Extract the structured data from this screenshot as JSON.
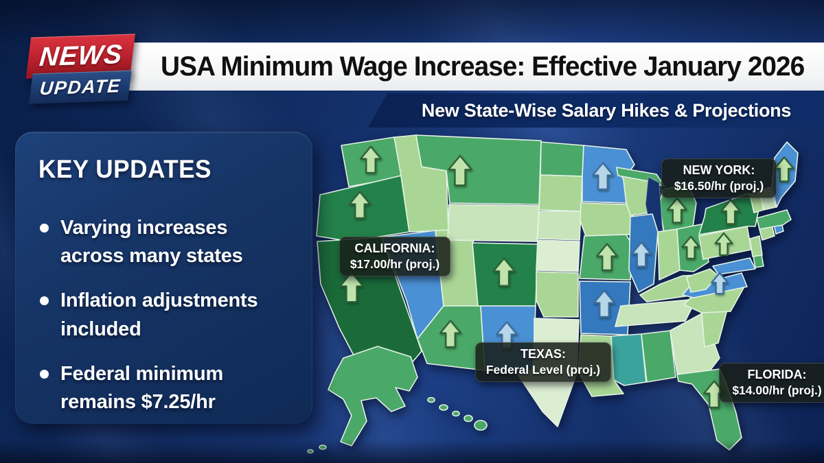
{
  "badge": {
    "line1": "NEWS",
    "line2": "UPDATE"
  },
  "header": {
    "title": "USA Minimum Wage Increase: Effective January 2026"
  },
  "subheader": {
    "text": "New State-Wise Salary Hikes & Projections"
  },
  "key_updates": {
    "title": "KEY UPDATES",
    "bullets": [
      "Varying increases across many states",
      "Inflation adjustments included",
      "Federal minimum remains $7.25/hr"
    ]
  },
  "colors": {
    "badge_red": "#c02330",
    "badge_navy": "#1c3a6f",
    "banner_white": "#ffffff",
    "background_navy": "#16336f",
    "headline_text": "#101010",
    "panel_navy": "#153364"
  },
  "map": {
    "palette": {
      "green_darkest": "#1b6b3a",
      "green_dark": "#23824a",
      "green_med": "#4aa868",
      "green_light": "#a9d695",
      "green_pale": "#c8e4bb",
      "green_palest": "#dbeed2",
      "blue": "#4a90d4",
      "blue_dark": "#3478be",
      "teal": "#3aa39b",
      "water": "#16356f",
      "state_border": "#e6f2e6",
      "arrow_green_fill": "#bfe3ab",
      "arrow_green_stroke": "#2f6137",
      "arrow_blue_fill": "#b7d7e8",
      "arrow_blue_stroke": "#3f6f9e"
    },
    "arrow_icon": "up-arrow-icon",
    "states": [
      {
        "id": "wa",
        "name": "Washington",
        "fill": "green_med",
        "arrow": true
      },
      {
        "id": "or",
        "name": "Oregon",
        "fill": "green_dark",
        "arrow": true
      },
      {
        "id": "ca",
        "name": "California",
        "fill": "green_darkest",
        "arrow": true
      },
      {
        "id": "id",
        "name": "Idaho",
        "fill": "green_light",
        "arrow": false
      },
      {
        "id": "nv",
        "name": "Nevada",
        "fill": "blue",
        "arrow": false
      },
      {
        "id": "ut",
        "name": "Utah",
        "fill": "green_light",
        "arrow": false
      },
      {
        "id": "az",
        "name": "Arizona",
        "fill": "green_med",
        "arrow": true
      },
      {
        "id": "mt",
        "name": "Montana",
        "fill": "green_med",
        "arrow": true
      },
      {
        "id": "wy",
        "name": "Wyoming",
        "fill": "green_pale",
        "arrow": false
      },
      {
        "id": "co",
        "name": "Colorado",
        "fill": "green_dark",
        "arrow": true
      },
      {
        "id": "nm",
        "name": "New Mexico",
        "fill": "blue",
        "arrow": true
      },
      {
        "id": "nd",
        "name": "North Dakota",
        "fill": "green_med",
        "arrow": false
      },
      {
        "id": "sd",
        "name": "South Dakota",
        "fill": "green_light",
        "arrow": false
      },
      {
        "id": "ne",
        "name": "Nebraska",
        "fill": "green_pale",
        "arrow": false
      },
      {
        "id": "ks",
        "name": "Kansas",
        "fill": "green_palest",
        "arrow": false
      },
      {
        "id": "ok",
        "name": "Oklahoma",
        "fill": "green_light",
        "arrow": false
      },
      {
        "id": "tx",
        "name": "Texas",
        "fill": "green_palest",
        "arrow": false
      },
      {
        "id": "mn",
        "name": "Minnesota",
        "fill": "blue",
        "arrow": true
      },
      {
        "id": "ia",
        "name": "Iowa",
        "fill": "green_light",
        "arrow": false
      },
      {
        "id": "mo",
        "name": "Missouri",
        "fill": "green_med",
        "arrow": true
      },
      {
        "id": "ar",
        "name": "Arkansas",
        "fill": "blue_dark",
        "arrow": true
      },
      {
        "id": "la",
        "name": "Louisiana",
        "fill": "green_light",
        "arrow": false
      },
      {
        "id": "wi",
        "name": "Wisconsin",
        "fill": "green_light",
        "arrow": false
      },
      {
        "id": "mi_up",
        "name": "Michigan Upper Peninsula",
        "fill": "green_med",
        "arrow": false
      },
      {
        "id": "mi",
        "name": "Michigan",
        "fill": "green_med",
        "arrow": true
      },
      {
        "id": "lake_mi",
        "name": "Lake Michigan",
        "fill": "water",
        "arrow": false
      },
      {
        "id": "il",
        "name": "Illinois",
        "fill": "blue_dark",
        "arrow": true
      },
      {
        "id": "in",
        "name": "Indiana",
        "fill": "green_light",
        "arrow": false
      },
      {
        "id": "oh",
        "name": "Ohio",
        "fill": "green_med",
        "arrow": true
      },
      {
        "id": "ky",
        "name": "Kentucky",
        "fill": "green_light",
        "arrow": false
      },
      {
        "id": "tn",
        "name": "Tennessee",
        "fill": "green_pale",
        "arrow": false
      },
      {
        "id": "ms",
        "name": "Mississippi",
        "fill": "teal",
        "arrow": false
      },
      {
        "id": "al",
        "name": "Alabama",
        "fill": "green_med",
        "arrow": false
      },
      {
        "id": "ga",
        "name": "Georgia",
        "fill": "green_pale",
        "arrow": false
      },
      {
        "id": "sc",
        "name": "South Carolina",
        "fill": "green_light",
        "arrow": false
      },
      {
        "id": "nc",
        "name": "North Carolina",
        "fill": "green_light",
        "arrow": false
      },
      {
        "id": "va",
        "name": "Virginia",
        "fill": "blue",
        "arrow": true
      },
      {
        "id": "wv",
        "name": "West Virginia",
        "fill": "green_light",
        "arrow": false
      },
      {
        "id": "pa",
        "name": "Pennsylvania",
        "fill": "green_light",
        "arrow": true
      },
      {
        "id": "ny",
        "name": "New York",
        "fill": "green_dark",
        "arrow": true
      },
      {
        "id": "md",
        "name": "Maryland",
        "fill": "blue",
        "arrow": false
      },
      {
        "id": "de",
        "name": "Delaware",
        "fill": "green_med",
        "arrow": false
      },
      {
        "id": "nj",
        "name": "New Jersey",
        "fill": "green_light",
        "arrow": false
      },
      {
        "id": "ct",
        "name": "Connecticut",
        "fill": "green_light",
        "arrow": false
      },
      {
        "id": "ri",
        "name": "Rhode Island",
        "fill": "blue",
        "arrow": false
      },
      {
        "id": "ma",
        "name": "Massachusetts",
        "fill": "green_med",
        "arrow": false
      },
      {
        "id": "vt",
        "name": "Vermont",
        "fill": "green_light",
        "arrow": false
      },
      {
        "id": "nh",
        "name": "New Hampshire",
        "fill": "green_pale",
        "arrow": false
      },
      {
        "id": "me",
        "name": "Maine",
        "fill": "blue",
        "arrow": true
      },
      {
        "id": "fl",
        "name": "Florida",
        "fill": "green_med",
        "arrow": true
      },
      {
        "id": "ak",
        "name": "Alaska",
        "fill": "green_med",
        "arrow": false
      },
      {
        "id": "hi",
        "name": "Hawaii",
        "fill": "green_med",
        "arrow": false
      }
    ],
    "callouts": [
      {
        "id": "california",
        "name": "CALIFORNIA:",
        "value": "$17.00/hr (proj.)"
      },
      {
        "id": "new_york",
        "name": "NEW YORK:",
        "value": "$16.50/hr (proj.)"
      },
      {
        "id": "texas",
        "name": "TEXAS:",
        "value": "Federal Level (proj.)"
      },
      {
        "id": "florida",
        "name": "FLORIDA:",
        "value": "$14.00/hr (proj.)"
      }
    ]
  }
}
